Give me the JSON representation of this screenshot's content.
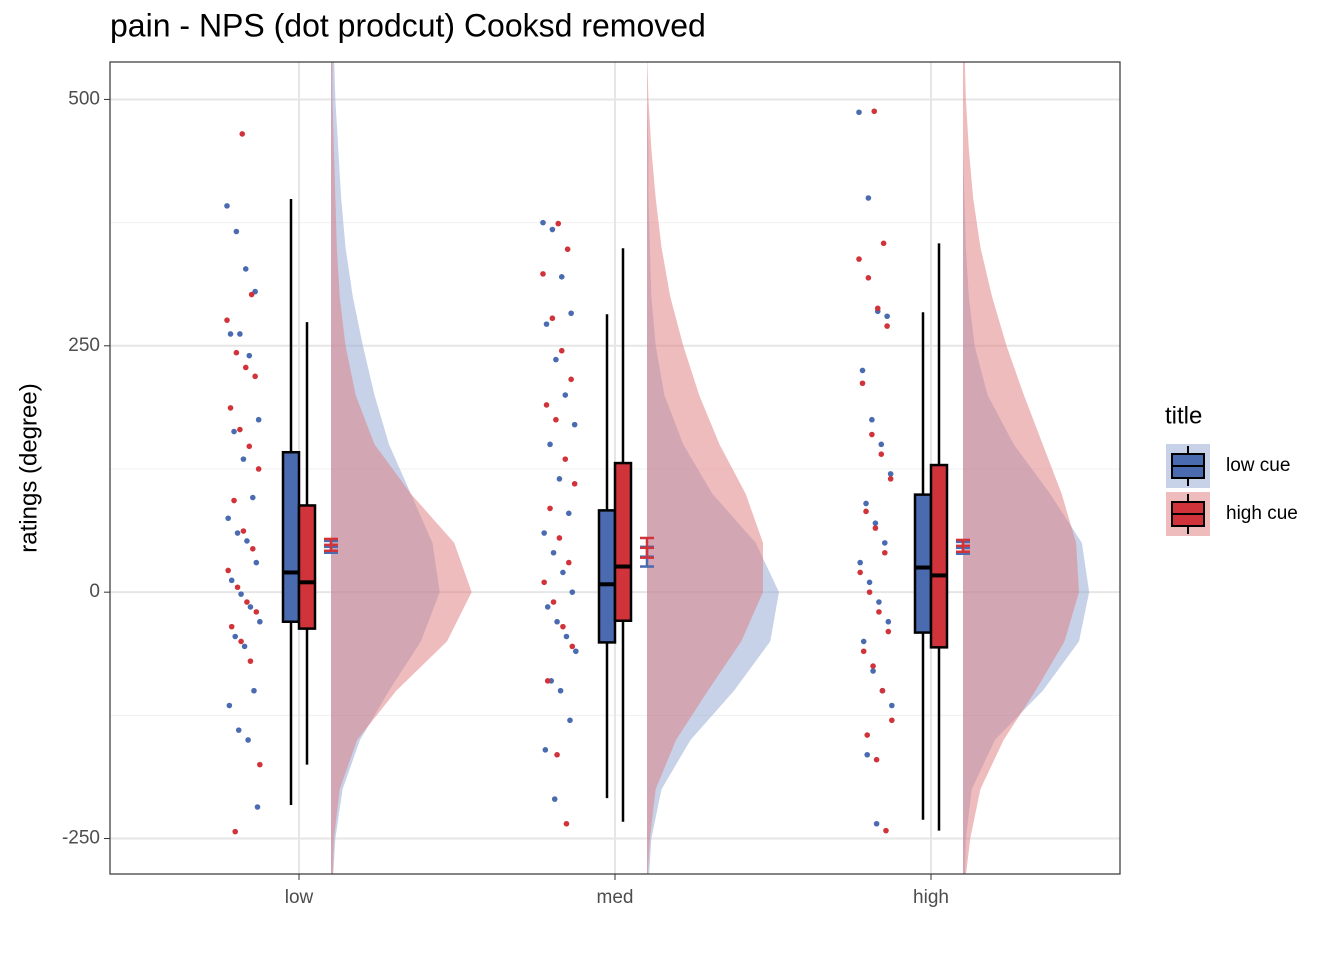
{
  "chart_data": {
    "type": "raincloud",
    "title": "pain  - NPS (dot prodcut) Cooksd removed",
    "y_label": "ratings (degree)",
    "categories": [
      "low",
      "med",
      "high"
    ],
    "ylim": [
      -286,
      538
    ],
    "yticks": [
      -250,
      0,
      250,
      500
    ],
    "yminor": [
      -125,
      125,
      375
    ],
    "grid": true,
    "legend_title": "title",
    "legend_position": "right",
    "density_y": [
      -300,
      -250,
      -200,
      -150,
      -100,
      -50,
      0,
      50,
      100,
      150,
      200,
      250,
      300,
      350,
      400,
      450,
      500,
      550
    ],
    "series": [
      {
        "name": "low cue",
        "color": "#4a6bb0",
        "density_color": "#8fa6d2",
        "box": [
          [
            -216,
            -30,
            20,
            142,
            399
          ],
          [
            -209,
            -51,
            8,
            83,
            282
          ],
          [
            -231,
            -41,
            25,
            99,
            284
          ]
        ],
        "mean": [
          46,
          36,
          45
        ],
        "se": [
          6,
          10,
          6
        ],
        "points": [
          [
            392,
            366,
            328,
            305,
            262,
            262,
            240,
            175,
            163,
            135,
            96,
            75,
            60,
            52,
            30,
            12,
            -2,
            -15,
            -30,
            -45,
            -55,
            -100,
            -115,
            -140,
            -150,
            -218
          ],
          [
            375,
            368,
            320,
            283,
            272,
            236,
            200,
            170,
            150,
            115,
            80,
            60,
            40,
            20,
            0,
            -15,
            -30,
            -45,
            -60,
            -90,
            -100,
            -130,
            -160,
            -210
          ],
          [
            487,
            400,
            285,
            280,
            225,
            175,
            150,
            120,
            90,
            70,
            50,
            30,
            10,
            -10,
            -30,
            -50,
            -80,
            -100,
            -115,
            -165,
            -235
          ]
        ],
        "density": [
          [
            0.01,
            0.03,
            0.08,
            0.2,
            0.4,
            0.62,
            0.75,
            0.7,
            0.55,
            0.4,
            0.3,
            0.22,
            0.15,
            0.1,
            0.07,
            0.05,
            0.03,
            0.02
          ],
          [
            0.01,
            0.03,
            0.1,
            0.3,
            0.6,
            0.85,
            0.91,
            0.75,
            0.45,
            0.25,
            0.12,
            0.06,
            0.03,
            0.02,
            0.01,
            0.01,
            0,
            0
          ],
          [
            0.01,
            0.02,
            0.06,
            0.22,
            0.55,
            0.8,
            0.87,
            0.82,
            0.6,
            0.35,
            0.17,
            0.08,
            0.04,
            0.02,
            0.01,
            0,
            0,
            0
          ]
        ]
      },
      {
        "name": "high cue",
        "color": "#d0343a",
        "density_color": "#e07a7e",
        "box": [
          [
            -175,
            -37,
            10,
            88,
            274
          ],
          [
            -233,
            -29,
            26,
            131,
            349
          ],
          [
            -242,
            -56,
            17,
            129,
            354
          ]
        ],
        "mean": [
          48,
          45,
          47
        ],
        "se": [
          6,
          10,
          6
        ],
        "points": [
          [
            465,
            302,
            276,
            243,
            228,
            219,
            187,
            165,
            148,
            125,
            93,
            62,
            44,
            22,
            5,
            -10,
            -20,
            -35,
            -50,
            -70,
            -175,
            -243
          ],
          [
            374,
            348,
            323,
            278,
            245,
            216,
            190,
            175,
            135,
            110,
            85,
            55,
            30,
            10,
            -10,
            -35,
            -55,
            -90,
            -165,
            -235
          ],
          [
            488,
            354,
            338,
            319,
            288,
            270,
            212,
            160,
            140,
            115,
            82,
            65,
            40,
            20,
            0,
            -20,
            -40,
            -60,
            -75,
            -100,
            -130,
            -145,
            -170,
            -242
          ]
        ],
        "density": [
          [
            0.01,
            0.02,
            0.06,
            0.18,
            0.45,
            0.8,
            0.97,
            0.85,
            0.55,
            0.3,
            0.17,
            0.1,
            0.06,
            0.04,
            0.03,
            0.02,
            0.01,
            0.01
          ],
          [
            0,
            0.02,
            0.06,
            0.2,
            0.42,
            0.65,
            0.8,
            0.8,
            0.68,
            0.5,
            0.36,
            0.25,
            0.16,
            0.1,
            0.06,
            0.03,
            0.01,
            0
          ],
          [
            0.01,
            0.05,
            0.12,
            0.28,
            0.5,
            0.7,
            0.8,
            0.78,
            0.68,
            0.55,
            0.42,
            0.3,
            0.2,
            0.12,
            0.07,
            0.04,
            0.02,
            0.01
          ]
        ]
      }
    ]
  }
}
